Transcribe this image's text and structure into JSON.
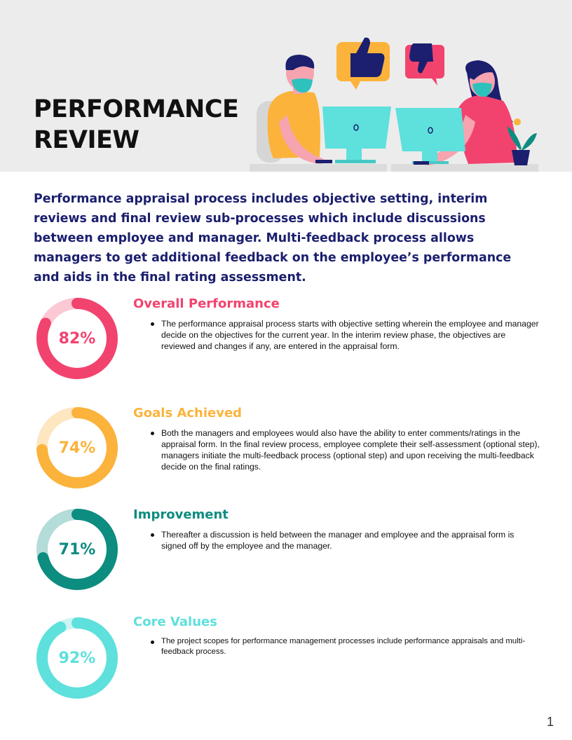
{
  "header": {
    "title_lines": [
      "PERFORMANCE",
      "REVIEW"
    ],
    "background": "#ececec"
  },
  "intro": {
    "text": "Performance appraisal process includes objective setting, interim reviews and final review sub-processes which include discussions between employee and manager. Multi-feedback process allows managers to get additional feedback on the employee’s performance and aids in the final rating assessment.",
    "color": "#1b1f6e"
  },
  "sections": [
    {
      "title": "Overall Performance",
      "percent_label": "82%",
      "percent_value": 82,
      "color": "#f2436f",
      "track_color": "#fbc8d4",
      "bullets": [
        "The performance appraisal process starts with objective setting wherein the employee and manager decide on the objectives for the current year. In the interim review phase, the objectives are reviewed and changes if any, are entered in the appraisal form."
      ]
    },
    {
      "title": "Goals Achieved",
      "percent_label": "74%",
      "percent_value": 74,
      "color": "#fbb33c",
      "track_color": "#fde6c0",
      "bullets": [
        "Both the managers and employees would also have the ability to enter comments/ratings in the appraisal form. In the final review process, employee complete their self-assessment (optional step), managers initiate the multi-feedback process (optional step) and upon receiving the multi-feedback decide on the final ratings."
      ]
    },
    {
      "title": "Improvement",
      "percent_label": "71%",
      "percent_value": 71,
      "color": "#0d8c80",
      "track_color": "#b4dcd8",
      "bullets": [
        "Thereafter a discussion is held between the manager and employee and the appraisal form is signed off by the employee and the manager."
      ]
    },
    {
      "title": "Core Values",
      "percent_label": "92%",
      "percent_value": 92,
      "color": "#5ee0dc",
      "track_color": "#cdf5f3",
      "bullets": [
        "The project scopes for performance management processes include performance appraisals and multi-feedback process."
      ]
    }
  ],
  "icons": [
    "thumbs-up-icon",
    "thumbs-down-icon",
    "computer-monitor-icon",
    "plant-icon"
  ],
  "page_number": "1"
}
